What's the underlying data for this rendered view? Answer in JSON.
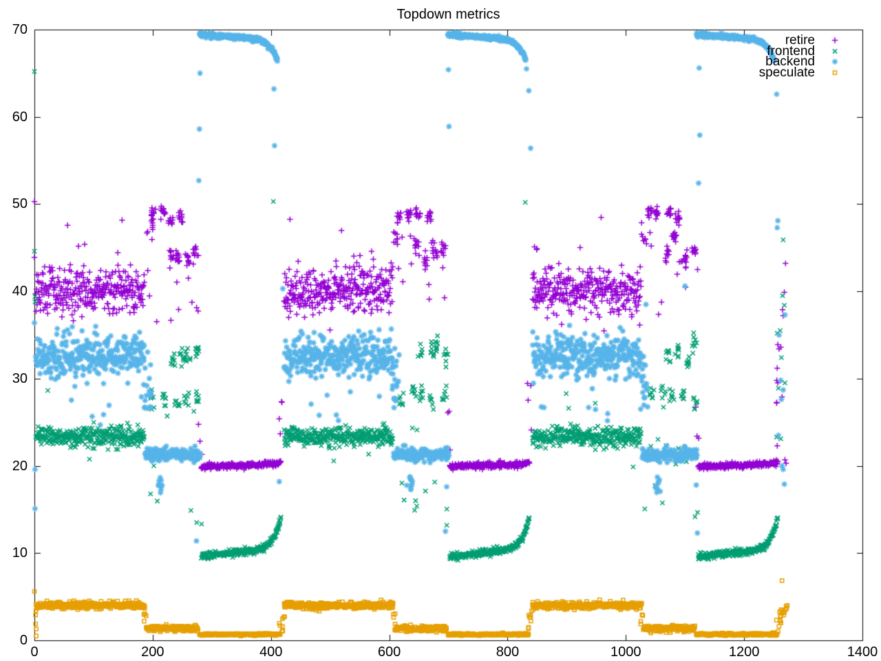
{
  "chart_data": {
    "type": "scatter",
    "title": "Topdown metrics",
    "xlabel": "",
    "ylabel": "",
    "xlim": [
      0,
      1400
    ],
    "ylim": [
      0,
      70
    ],
    "x_ticks": [
      0,
      200,
      400,
      600,
      800,
      1000,
      1200,
      1400
    ],
    "y_ticks": [
      0,
      10,
      20,
      30,
      40,
      50,
      60,
      70
    ],
    "grid": false,
    "legend_position": "top-right-inside",
    "background": "#ffffff",
    "axis_color": "#000000",
    "period_offsets": [
      0,
      420,
      840
    ],
    "series": [
      {
        "name": "retire",
        "color": "#9400d3",
        "marker": "plus",
        "segments": [
          {
            "type": "band",
            "x0": 2,
            "x1": 186,
            "n": 310,
            "y": 40.1,
            "sd": 1.35
          },
          {
            "type": "column",
            "x0": 5,
            "x1": 180,
            "ymin": 43.5,
            "ymax": 48.7,
            "n": 5
          },
          {
            "type": "clumps",
            "x0": 192,
            "x1": 252,
            "y": 48.8,
            "sdc": 0.35,
            "clumps": 4,
            "per": 11,
            "rx": 4,
            "sdy": 0.35
          },
          {
            "type": "clumps",
            "x0": 222,
            "x1": 280,
            "y": 44.0,
            "sdc": 0.6,
            "clumps": 4,
            "per": 10,
            "rx": 4,
            "sdy": 0.5
          },
          {
            "type": "clumps",
            "x0": 186,
            "x1": 202,
            "y": 46.2,
            "sdc": 0.4,
            "clumps": 1,
            "per": 8,
            "rx": 5,
            "sdy": 0.6
          },
          {
            "type": "column",
            "x0": 188,
            "x1": 282,
            "ymin": 36.5,
            "ymax": 47.5,
            "n": 12
          },
          {
            "type": "band",
            "x0": 282,
            "x1": 417,
            "n": 240,
            "y": 19.95,
            "slope": 0.2,
            "rise": 0.25,
            "pow": 8,
            "sd": 0.16
          },
          {
            "type": "column",
            "x0": 277,
            "x1": 285,
            "ymin": 20.5,
            "ymax": 27.5,
            "n": 3
          },
          {
            "type": "column",
            "x0": 413,
            "x1": 421,
            "ymin": 21,
            "ymax": 30.5,
            "n": 4
          }
        ],
        "points": [
          [
            0,
            50.3
          ],
          [
            0,
            43.9
          ],
          [
            1270,
            43.2
          ],
          [
            1268,
            39.9
          ],
          [
            1265,
            37.9
          ],
          [
            1266,
            37.2
          ],
          [
            1257,
            33.9
          ],
          [
            1259,
            33.4
          ],
          [
            1262,
            33.6
          ],
          [
            1256,
            31.2
          ],
          [
            1264,
            27.9
          ],
          [
            1256,
            22.3
          ],
          [
            1269,
            20.7
          ],
          [
            1271,
            20.3
          ]
        ]
      },
      {
        "name": "frontend",
        "color": "#009e73",
        "marker": "cross",
        "segments": [
          {
            "type": "band",
            "x0": 2,
            "x1": 186,
            "n": 310,
            "y": 23.35,
            "sd": 0.55
          },
          {
            "type": "column",
            "x0": 4,
            "x1": 182,
            "ymin": 19.5,
            "ymax": 29.5,
            "n": 5
          },
          {
            "type": "clumps",
            "x0": 228,
            "x1": 282,
            "y": 33.1,
            "sdc": 0.5,
            "clumps": 4,
            "per": 8,
            "rx": 4,
            "sdy": 0.5
          },
          {
            "type": "clumps",
            "x0": 192,
            "x1": 282,
            "y": 27.9,
            "sdc": 0.5,
            "clumps": 5,
            "per": 7,
            "rx": 4,
            "sdy": 0.5
          },
          {
            "type": "column",
            "x0": 188,
            "x1": 282,
            "ymin": 14.5,
            "ymax": 26.5,
            "n": 9
          },
          {
            "type": "band",
            "x0": 282,
            "x1": 417,
            "n": 240,
            "y": 9.62,
            "slope": 0.95,
            "rise": 3.6,
            "pow": 11,
            "sd": 0.2
          },
          {
            "type": "column",
            "x0": 274,
            "x1": 284,
            "ymin": 13,
            "ymax": 16.5,
            "n": 2
          }
        ],
        "points": [
          [
            0,
            65.2
          ],
          [
            0,
            44.6
          ],
          [
            1,
            39.4
          ],
          [
            1,
            38.8
          ],
          [
            404,
            50.3
          ],
          [
            830,
            50.2
          ],
          [
            1266,
            45.9
          ],
          [
            1265,
            39.5
          ],
          [
            1268,
            38.4
          ],
          [
            1256,
            35.2
          ],
          [
            1261,
            35.5
          ],
          [
            1263,
            32.4
          ],
          [
            1269,
            29.5
          ],
          [
            1258,
            28.9
          ],
          [
            1255,
            23.3
          ],
          [
            1262,
            23.1
          ]
        ]
      },
      {
        "name": "backend",
        "color": "#56b4e9",
        "marker": "star",
        "segments": [
          {
            "type": "band",
            "x0": 2,
            "x1": 186,
            "n": 310,
            "y": 32.6,
            "sd": 1.2
          },
          {
            "type": "column",
            "x0": 6,
            "x1": 182,
            "ymin": 24.5,
            "ymax": 29.5,
            "n": 7
          },
          {
            "type": "column",
            "x0": 183,
            "x1": 197,
            "ymin": 26.5,
            "ymax": 33.5,
            "n": 18
          },
          {
            "type": "band",
            "x0": 187,
            "x1": 281,
            "n": 150,
            "y": 21.3,
            "sd": 0.38
          },
          {
            "type": "column",
            "x0": 208,
            "x1": 219,
            "ymin": 16.8,
            "ymax": 18.8,
            "n": 10
          },
          {
            "type": "band",
            "x0": 279,
            "x1": 411,
            "n": 250,
            "y": 69.42,
            "slope": -0.6,
            "rise": -2.35,
            "pow": 10,
            "sd": 0.12
          }
        ],
        "points": [
          [
            0,
            36.4
          ],
          [
            1,
            19.6
          ],
          [
            1,
            15.1
          ],
          [
            280,
            65.0
          ],
          [
            279,
            58.6
          ],
          [
            278,
            52.7
          ],
          [
            274,
            11.4
          ],
          [
            405,
            63.2
          ],
          [
            406,
            56.7
          ],
          [
            420,
            40.3
          ],
          [
            414,
            18.2
          ],
          [
            700,
            65.4
          ],
          [
            701,
            58.9
          ],
          [
            695,
            12.5
          ],
          [
            697,
            17.6
          ],
          [
            836,
            63.0
          ],
          [
            839,
            56.4
          ],
          [
            832,
            65.5
          ],
          [
            1124,
            65.6
          ],
          [
            1125,
            57.9
          ],
          [
            1123,
            52.4
          ],
          [
            1119,
            17.8
          ],
          [
            1121,
            12.3
          ],
          [
            1100,
            40.6
          ],
          [
            1034,
            38.5
          ],
          [
            1255,
            62.6
          ],
          [
            1256,
            47.3
          ],
          [
            1257,
            48.1
          ],
          [
            1269,
            37.3
          ],
          [
            1259,
            35.0
          ],
          [
            1262,
            29.8
          ],
          [
            1266,
            28.7
          ],
          [
            1263,
            27.6
          ],
          [
            1258,
            23.5
          ],
          [
            1264,
            20.0
          ],
          [
            1266,
            19.6
          ],
          [
            1268,
            17.9
          ]
        ]
      },
      {
        "name": "speculate",
        "color": "#e69f00",
        "marker": "square",
        "segments": [
          {
            "type": "band",
            "x0": 2,
            "x1": 187,
            "n": 310,
            "y": 4.0,
            "sd": 0.2
          },
          {
            "type": "band",
            "x0": 189,
            "x1": 277,
            "n": 150,
            "y": 1.35,
            "sd": 0.17
          },
          {
            "type": "band",
            "x0": 279,
            "x1": 416,
            "n": 240,
            "y": 0.68,
            "sd": 0.06
          },
          {
            "type": "column",
            "x0": 185,
            "x1": 190,
            "ymin": 1.7,
            "ymax": 3.3,
            "n": 4
          },
          {
            "type": "column",
            "x0": 414,
            "x1": 423,
            "ymin": 1.0,
            "ymax": 3.6,
            "n": 8
          }
        ],
        "points": [
          [
            0,
            5.6
          ],
          [
            2,
            2.9
          ],
          [
            2,
            1.9
          ],
          [
            3,
            1.3
          ],
          [
            3,
            0.5
          ],
          [
            1264,
            6.85
          ],
          [
            1259,
            1.6
          ],
          [
            1261,
            2.2
          ],
          [
            1262,
            2.8
          ],
          [
            1264,
            3.1
          ],
          [
            1266,
            3.3
          ],
          [
            1267,
            2.9
          ],
          [
            1268,
            3.2
          ],
          [
            1270,
            3.5
          ],
          [
            1271,
            3.9
          ],
          [
            1272,
            3.7
          ],
          [
            1273,
            4.0
          ]
        ]
      }
    ]
  }
}
